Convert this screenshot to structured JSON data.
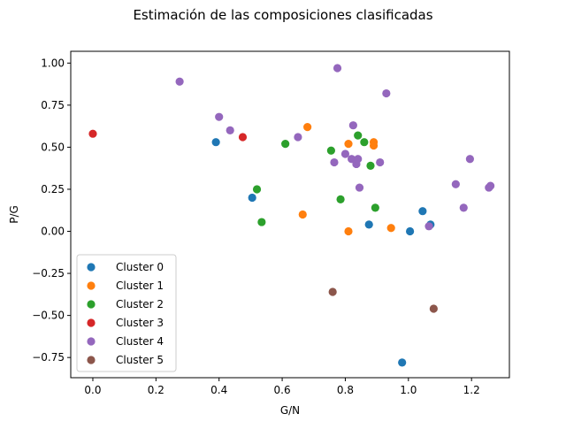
{
  "chart_data": {
    "type": "scatter",
    "title": "Estimación de las composiciones clasificadas",
    "xlabel": "G/N",
    "ylabel": "P/G",
    "xlim": [
      -0.07,
      1.32
    ],
    "ylim": [
      -0.87,
      1.07
    ],
    "xticks": [
      0.0,
      0.2,
      0.4,
      0.6,
      0.8,
      1.0,
      1.2
    ],
    "xtick_labels": [
      "0.0",
      "0.2",
      "0.4",
      "0.6",
      "0.8",
      "1.0",
      "1.2"
    ],
    "yticks": [
      -0.75,
      -0.5,
      -0.25,
      0.0,
      0.25,
      0.5,
      0.75,
      1.0
    ],
    "ytick_labels": [
      "−0.75",
      "−0.50",
      "−0.25",
      "0.00",
      "0.25",
      "0.50",
      "0.75",
      "1.00"
    ],
    "grid": false,
    "legend_position": "lower-left",
    "series": [
      {
        "name": "Cluster 0",
        "color": "#1f77b4",
        "points": [
          [
            0.39,
            0.53
          ],
          [
            0.505,
            0.2
          ],
          [
            0.875,
            0.04
          ],
          [
            0.98,
            -0.78
          ],
          [
            1.005,
            0.0
          ],
          [
            1.045,
            0.12
          ],
          [
            1.07,
            0.04
          ]
        ]
      },
      {
        "name": "Cluster 1",
        "color": "#ff7f0e",
        "points": [
          [
            0.665,
            0.1
          ],
          [
            0.68,
            0.62
          ],
          [
            0.81,
            0.52
          ],
          [
            0.81,
            0.0
          ],
          [
            0.89,
            0.53
          ],
          [
            0.89,
            0.51
          ],
          [
            0.945,
            0.02
          ]
        ]
      },
      {
        "name": "Cluster 2",
        "color": "#2ca02c",
        "points": [
          [
            0.52,
            0.25
          ],
          [
            0.535,
            0.055
          ],
          [
            0.61,
            0.52
          ],
          [
            0.755,
            0.48
          ],
          [
            0.785,
            0.19
          ],
          [
            0.84,
            0.57
          ],
          [
            0.86,
            0.53
          ],
          [
            0.88,
            0.39
          ],
          [
            0.895,
            0.14
          ]
        ]
      },
      {
        "name": "Cluster 3",
        "color": "#d62728",
        "points": [
          [
            0.0,
            0.58
          ],
          [
            0.475,
            0.56
          ]
        ]
      },
      {
        "name": "Cluster 4",
        "color": "#9467bd",
        "points": [
          [
            0.275,
            0.89
          ],
          [
            0.4,
            0.68
          ],
          [
            0.435,
            0.6
          ],
          [
            0.65,
            0.56
          ],
          [
            0.765,
            0.41
          ],
          [
            0.775,
            0.97
          ],
          [
            0.8,
            0.46
          ],
          [
            0.82,
            0.43
          ],
          [
            0.825,
            0.63
          ],
          [
            0.835,
            0.4
          ],
          [
            0.84,
            0.43
          ],
          [
            0.845,
            0.26
          ],
          [
            0.91,
            0.41
          ],
          [
            0.93,
            0.82
          ],
          [
            1.065,
            0.03
          ],
          [
            1.15,
            0.28
          ],
          [
            1.175,
            0.14
          ],
          [
            1.195,
            0.43
          ],
          [
            1.255,
            0.26
          ],
          [
            1.26,
            0.27
          ]
        ]
      },
      {
        "name": "Cluster 5",
        "color": "#8c564b",
        "points": [
          [
            0.76,
            -0.36
          ],
          [
            1.08,
            -0.46
          ]
        ]
      }
    ]
  }
}
